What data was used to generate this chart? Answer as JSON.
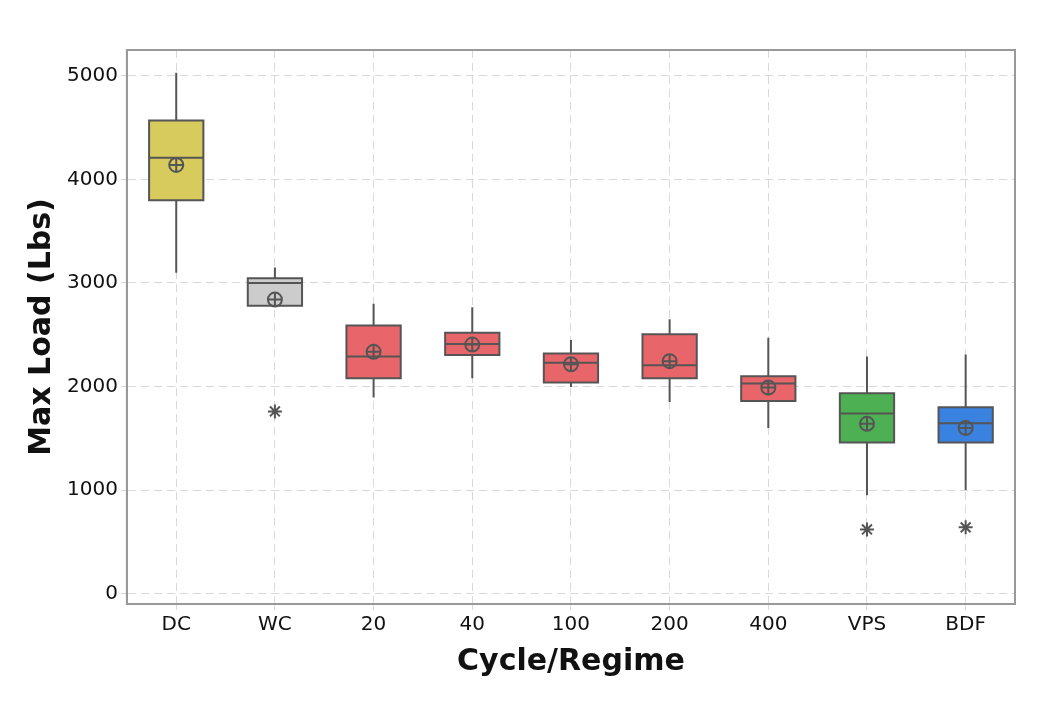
{
  "chart_data": {
    "type": "box",
    "xlabel": "Cycle/Regime",
    "ylabel": "Max Load (Lbs)",
    "categories": [
      "DC",
      "WC",
      "20",
      "40",
      "100",
      "200",
      "400",
      "VPS",
      "BDF"
    ],
    "colors": [
      "#d8cb5e",
      "#cccccc",
      "#e8666a",
      "#e8666a",
      "#e8666a",
      "#e8666a",
      "#e8666a",
      "#4db052",
      "#3a82e0"
    ],
    "boxes": [
      {
        "low": 3100,
        "q1": 3800,
        "median": 4210,
        "q3": 4570,
        "high": 5030,
        "mean": 4140
      },
      {
        "low": 2780,
        "q1": 2780,
        "median": 3000,
        "q3": 3045,
        "high": 3150,
        "mean": 2840,
        "outliers": [
          1760
        ]
      },
      {
        "low": 1895,
        "q1": 2080,
        "median": 2290,
        "q3": 2590,
        "high": 2800,
        "mean": 2335
      },
      {
        "low": 2080,
        "q1": 2305,
        "median": 2410,
        "q3": 2520,
        "high": 2765,
        "mean": 2405
      },
      {
        "low": 1995,
        "q1": 2040,
        "median": 2230,
        "q3": 2320,
        "high": 2450,
        "mean": 2215
      },
      {
        "low": 1850,
        "q1": 2080,
        "median": 2205,
        "q3": 2505,
        "high": 2650,
        "mean": 2245
      },
      {
        "low": 1600,
        "q1": 1860,
        "median": 2030,
        "q3": 2100,
        "high": 2470,
        "mean": 1990
      },
      {
        "low": 950,
        "q1": 1460,
        "median": 1740,
        "q3": 1935,
        "high": 2290,
        "mean": 1640,
        "outliers": [
          620
        ]
      },
      {
        "low": 1000,
        "q1": 1460,
        "median": 1645,
        "q3": 1800,
        "high": 2310,
        "mean": 1600,
        "outliers": [
          640
        ]
      }
    ],
    "ylim": [
      -100,
      5250
    ],
    "yticks": [
      0,
      1000,
      2000,
      3000,
      4000,
      5000
    ],
    "grid": true
  }
}
